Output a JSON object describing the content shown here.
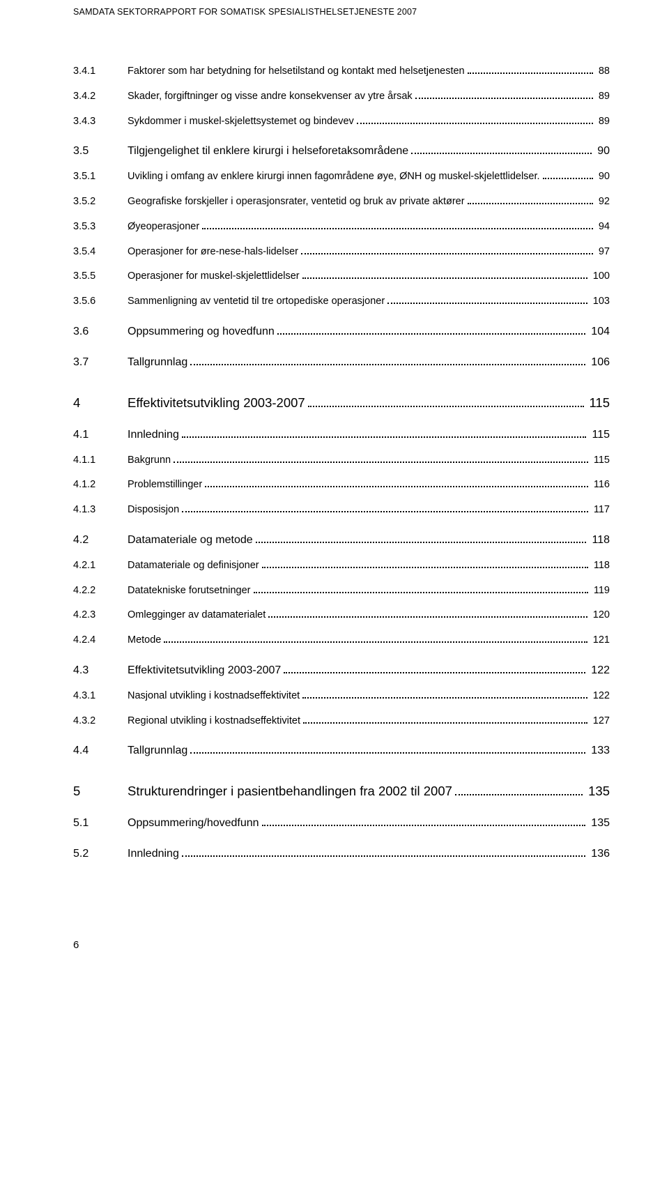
{
  "header": "SAMDATA SEKTORRAPPORT FOR SOMATISK SPESIALISTHELSETJENESTE 2007",
  "page_number": "6",
  "toc": [
    {
      "level": 3,
      "num": "3.4.1",
      "title": "Faktorer som har betydning for helsetilstand og kontakt med helsetjenesten",
      "page": "88"
    },
    {
      "level": 3,
      "num": "3.4.2",
      "title": "Skader, forgiftninger og visse andre konsekvenser av ytre årsak",
      "page": "89"
    },
    {
      "level": 3,
      "num": "3.4.3",
      "title": "Sykdommer i muskel-skjelettsystemet og bindevev",
      "page": "89"
    },
    {
      "level": 2,
      "num": "3.5",
      "title": "Tilgjengelighet til enklere kirurgi i helseforetaksområdene",
      "page": "90"
    },
    {
      "level": 3,
      "num": "3.5.1",
      "title": "Uvikling i omfang av enklere kirurgi innen fagområdene øye, ØNH og muskel-skjelettlidelser.",
      "page": "90"
    },
    {
      "level": 3,
      "num": "3.5.2",
      "title": "Geografiske forskjeller i operasjonsrater, ventetid og bruk av private aktører",
      "page": "92"
    },
    {
      "level": 3,
      "num": "3.5.3",
      "title": "Øyeoperasjoner",
      "page": "94"
    },
    {
      "level": 3,
      "num": "3.5.4",
      "title": "Operasjoner for øre-nese-hals-lidelser",
      "page": "97"
    },
    {
      "level": 3,
      "num": "3.5.5",
      "title": "Operasjoner for muskel-skjelettlidelser",
      "page": "100"
    },
    {
      "level": 3,
      "num": "3.5.6",
      "title": "Sammenligning av ventetid til tre ortopediske operasjoner",
      "page": "103"
    },
    {
      "level": 2,
      "num": "3.6",
      "title": "Oppsummering og hovedfunn",
      "page": "104"
    },
    {
      "level": 2,
      "num": "3.7",
      "title": "Tallgrunnlag",
      "page": "106"
    },
    {
      "level": 1,
      "num": "4",
      "title": "Effektivitetsutvikling 2003-2007",
      "page": "115"
    },
    {
      "level": 2,
      "num": "4.1",
      "title": "Innledning",
      "page": "115"
    },
    {
      "level": 3,
      "num": "4.1.1",
      "title": "Bakgrunn",
      "page": "115"
    },
    {
      "level": 3,
      "num": "4.1.2",
      "title": "Problemstillinger",
      "page": "116"
    },
    {
      "level": 3,
      "num": "4.1.3",
      "title": "Disposisjon",
      "page": "117"
    },
    {
      "level": 2,
      "num": "4.2",
      "title": "Datamateriale og metode",
      "page": "118"
    },
    {
      "level": 3,
      "num": "4.2.1",
      "title": "Datamateriale og definisjoner",
      "page": "118"
    },
    {
      "level": 3,
      "num": "4.2.2",
      "title": "Datatekniske forutsetninger",
      "page": "119"
    },
    {
      "level": 3,
      "num": "4.2.3",
      "title": "Omlegginger av datamaterialet",
      "page": "120"
    },
    {
      "level": 3,
      "num": "4.2.4",
      "title": "Metode",
      "page": "121"
    },
    {
      "level": 2,
      "num": "4.3",
      "title": "Effektivitetsutvikling 2003-2007",
      "page": "122"
    },
    {
      "level": 3,
      "num": "4.3.1",
      "title": "Nasjonal utvikling i kostnadseffektivitet",
      "page": "122"
    },
    {
      "level": 3,
      "num": "4.3.2",
      "title": "Regional utvikling i kostnadseffektivitet",
      "page": "127"
    },
    {
      "level": 2,
      "num": "4.4",
      "title": "Tallgrunnlag",
      "page": "133"
    },
    {
      "level": 1,
      "num": "5",
      "title": "Strukturendringer i pasientbehandlingen fra 2002 til 2007",
      "page": "135"
    },
    {
      "level": 2,
      "num": "5.1",
      "title": "Oppsummering/hovedfunn",
      "page": "135"
    },
    {
      "level": 2,
      "num": "5.2",
      "title": "Innledning",
      "page": "136"
    }
  ]
}
